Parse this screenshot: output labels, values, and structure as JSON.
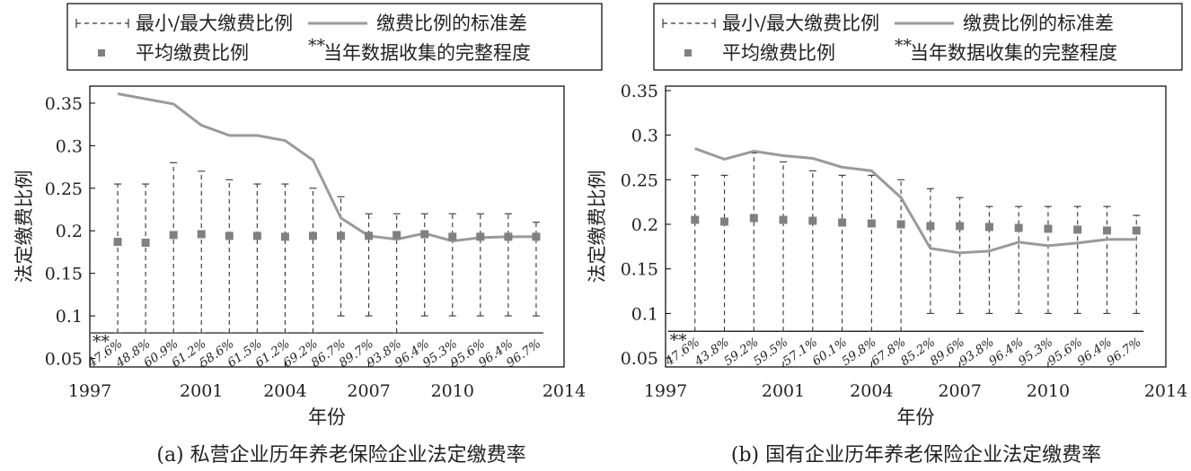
{
  "legend": {
    "minmax": "最小/最大缴费比例",
    "std": "缴费比例的标准差",
    "mean": "平均缴费比例",
    "completeness": "当年数据收集的完整程度",
    "completeness_mark": "**"
  },
  "colors": {
    "line": "#9a9a9a",
    "marker": "#808080",
    "errorbar": "#333333",
    "axis": "#000000"
  },
  "chart_data": [
    {
      "type": "line",
      "caption": "(a) 私营企业历年养老保险企业法定缴费率",
      "xlabel": "年份",
      "ylabel": "法定缴费比例",
      "xlim": [
        1997,
        2014
      ],
      "ylim": [
        0.04,
        0.37
      ],
      "xticks": [
        "1997",
        "2001",
        "2004",
        "2007",
        "2010",
        "2014"
      ],
      "yticks": [
        "0.05",
        "0.1",
        "0.15",
        "0.2",
        "0.25",
        "0.3",
        "0.35"
      ],
      "grid": false,
      "legend_position": "top",
      "x": [
        1998,
        1999,
        2000,
        2001,
        2002,
        2003,
        2004,
        2005,
        2006,
        2007,
        2008,
        2009,
        2010,
        2011,
        2012,
        2013
      ],
      "series": [
        {
          "name": "平均缴费比例",
          "kind": "marker",
          "values": [
            0.187,
            0.186,
            0.195,
            0.196,
            0.194,
            0.194,
            0.193,
            0.194,
            0.194,
            0.194,
            0.195,
            0.196,
            0.193,
            0.193,
            0.193,
            0.193
          ]
        },
        {
          "name": "缴费比例的标准差",
          "kind": "line",
          "values": [
            0.361,
            0.355,
            0.349,
            0.324,
            0.312,
            0.312,
            0.306,
            0.283,
            0.215,
            0.194,
            0.19,
            0.197,
            0.188,
            0.192,
            0.193,
            0.193
          ]
        },
        {
          "name": "最小/最大缴费比例",
          "kind": "errorbar",
          "min": [
            0.08,
            0.08,
            0.08,
            0.08,
            0.08,
            0.08,
            0.08,
            0.08,
            0.1,
            0.1,
            0.08,
            0.1,
            0.1,
            0.1,
            0.1,
            0.1
          ],
          "max": [
            0.255,
            0.255,
            0.28,
            0.27,
            0.26,
            0.255,
            0.255,
            0.25,
            0.24,
            0.22,
            0.22,
            0.22,
            0.22,
            0.22,
            0.22,
            0.21
          ]
        }
      ],
      "completeness": [
        "47.6%",
        "48.8%",
        "60.9%",
        "61.2%",
        "58.6%",
        "61.5%",
        "61.2%",
        "69.2%",
        "86.7%",
        "89.7%",
        "93.8%",
        "96.4%",
        "95.3%",
        "95.6%",
        "96.4%",
        "96.7%"
      ]
    },
    {
      "type": "line",
      "caption": "(b) 国有企业历年养老保险企业法定缴费率",
      "xlabel": "年份",
      "ylabel": "法定缴费比例",
      "xlim": [
        1997,
        2014
      ],
      "ylim": [
        0.04,
        0.355
      ],
      "xticks": [
        "1997",
        "2001",
        "2004",
        "2007",
        "2010",
        "2014"
      ],
      "yticks": [
        "0.05",
        "0.1",
        "0.15",
        "0.2",
        "0.25",
        "0.3",
        "0.35"
      ],
      "grid": false,
      "legend_position": "top",
      "x": [
        1998,
        1999,
        2000,
        2001,
        2002,
        2003,
        2004,
        2005,
        2006,
        2007,
        2008,
        2009,
        2010,
        2011,
        2012,
        2013
      ],
      "series": [
        {
          "name": "平均缴费比例",
          "kind": "marker",
          "values": [
            0.205,
            0.203,
            0.207,
            0.205,
            0.204,
            0.202,
            0.201,
            0.2,
            0.198,
            0.198,
            0.197,
            0.196,
            0.195,
            0.194,
            0.193,
            0.193
          ]
        },
        {
          "name": "缴费比例的标准差",
          "kind": "line",
          "values": [
            0.285,
            0.273,
            0.282,
            0.277,
            0.274,
            0.264,
            0.26,
            0.23,
            0.173,
            0.168,
            0.17,
            0.18,
            0.176,
            0.179,
            0.183,
            0.183
          ]
        },
        {
          "name": "最小/最大缴费比例",
          "kind": "errorbar",
          "min": [
            0.08,
            0.08,
            0.08,
            0.08,
            0.08,
            0.08,
            0.08,
            0.08,
            0.1,
            0.1,
            0.1,
            0.1,
            0.1,
            0.1,
            0.1,
            0.1
          ],
          "max": [
            0.255,
            0.255,
            0.28,
            0.27,
            0.26,
            0.255,
            0.255,
            0.25,
            0.24,
            0.23,
            0.22,
            0.22,
            0.22,
            0.22,
            0.22,
            0.21
          ]
        }
      ],
      "completeness": [
        "47.6%",
        "43.8%",
        "59.2%",
        "59.5%",
        "57.1%",
        "60.1%",
        "59.8%",
        "67.8%",
        "85.2%",
        "89.6%",
        "93.8%",
        "96.4%",
        "95.3%",
        "95.6%",
        "96.4%",
        "96.7%"
      ]
    }
  ]
}
